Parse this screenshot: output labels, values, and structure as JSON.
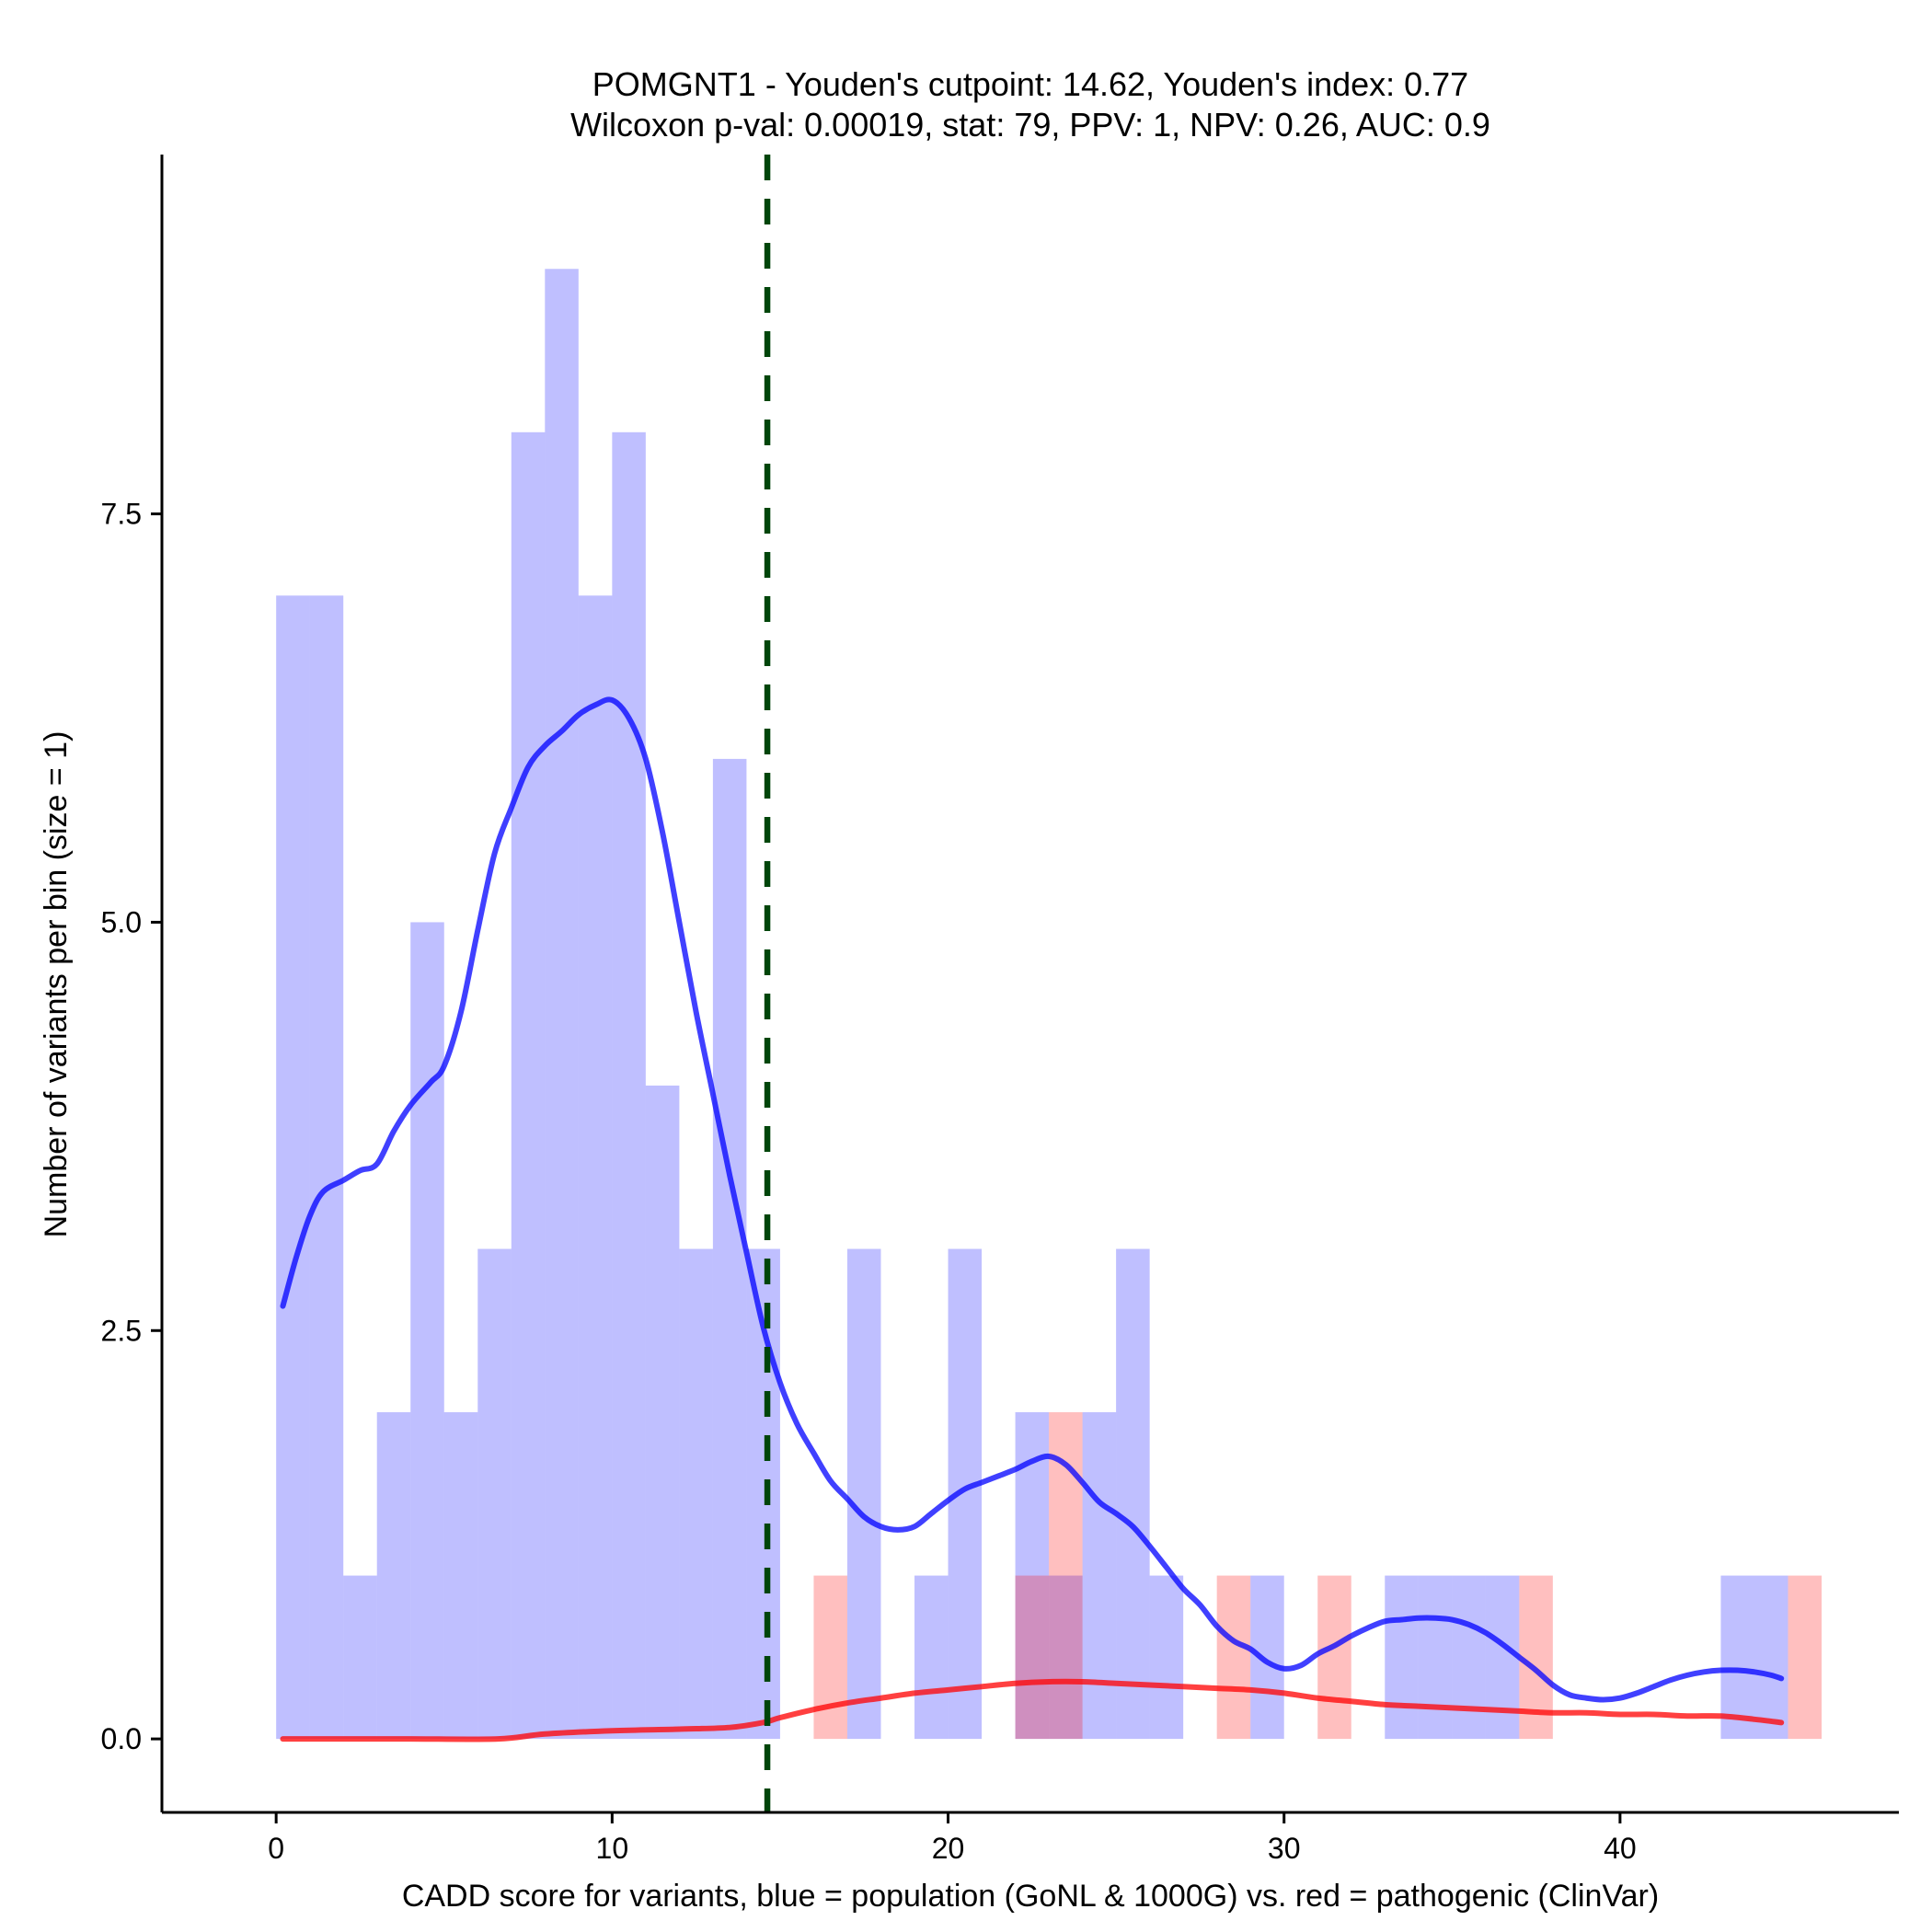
{
  "chart_data": {
    "type": "histogram",
    "title": "POMGNT1 - Youden's cutpoint: 14.62, Youden's index: 0.77",
    "subtitle": "Wilcoxon p-val: 0.00019, stat: 79, PPV: 1, NPV: 0.26, AUC: 0.9",
    "xlabel": "CADD score for variants, blue = population (GoNL & 1000G) vs. red = pathogenic (ClinVar)",
    "ylabel": "Number of variants per bin (size = 1)",
    "xlim": [
      -3.4,
      48.3
    ],
    "ylim": [
      -0.45,
      9.7
    ],
    "x_ticks": [
      0,
      10,
      20,
      30,
      40
    ],
    "x_tick_labels": [
      "0",
      "10",
      "20",
      "30",
      "40"
    ],
    "y_ticks": [
      0,
      2.5,
      5,
      7.5
    ],
    "y_tick_labels": [
      "0.0",
      "2.5",
      "5.0",
      "7.5"
    ],
    "bin_size": 1,
    "cutpoint": 14.62,
    "series": [
      {
        "name": "population (GoNL & 1000G)",
        "color": "#0000ff",
        "fill_opacity": 0.25,
        "bins": [
          {
            "x0": 0,
            "x1": 1,
            "count": 7
          },
          {
            "x0": 1,
            "x1": 2,
            "count": 7
          },
          {
            "x0": 2,
            "x1": 3,
            "count": 1
          },
          {
            "x0": 3,
            "x1": 4,
            "count": 2
          },
          {
            "x0": 4,
            "x1": 5,
            "count": 5
          },
          {
            "x0": 5,
            "x1": 6,
            "count": 2
          },
          {
            "x0": 6,
            "x1": 7,
            "count": 3
          },
          {
            "x0": 7,
            "x1": 8,
            "count": 8
          },
          {
            "x0": 8,
            "x1": 9,
            "count": 9
          },
          {
            "x0": 9,
            "x1": 10,
            "count": 7
          },
          {
            "x0": 10,
            "x1": 11,
            "count": 8
          },
          {
            "x0": 11,
            "x1": 12,
            "count": 4
          },
          {
            "x0": 12,
            "x1": 13,
            "count": 3
          },
          {
            "x0": 13,
            "x1": 14,
            "count": 6
          },
          {
            "x0": 14,
            "x1": 15,
            "count": 3
          },
          {
            "x0": 17,
            "x1": 18,
            "count": 3
          },
          {
            "x0": 19,
            "x1": 20,
            "count": 1
          },
          {
            "x0": 20,
            "x1": 21,
            "count": 3
          },
          {
            "x0": 22,
            "x1": 23,
            "count": 2
          },
          {
            "x0": 23,
            "x1": 24,
            "count": 1
          },
          {
            "x0": 24,
            "x1": 25,
            "count": 2
          },
          {
            "x0": 25,
            "x1": 26,
            "count": 3
          },
          {
            "x0": 26,
            "x1": 27,
            "count": 1
          },
          {
            "x0": 29,
            "x1": 30,
            "count": 1
          },
          {
            "x0": 33,
            "x1": 34,
            "count": 1
          },
          {
            "x0": 34,
            "x1": 35,
            "count": 1
          },
          {
            "x0": 35,
            "x1": 36,
            "count": 1
          },
          {
            "x0": 36,
            "x1": 37,
            "count": 1
          },
          {
            "x0": 43,
            "x1": 44,
            "count": 1
          },
          {
            "x0": 44,
            "x1": 45,
            "count": 1
          }
        ],
        "density_curve": [
          [
            0.2,
            2.65
          ],
          [
            0.6,
            2.95
          ],
          [
            1.0,
            3.2
          ],
          [
            1.4,
            3.35
          ],
          [
            2.0,
            3.42
          ],
          [
            2.5,
            3.48
          ],
          [
            3.0,
            3.52
          ],
          [
            3.5,
            3.72
          ],
          [
            4.0,
            3.88
          ],
          [
            4.6,
            4.02
          ],
          [
            5.0,
            4.12
          ],
          [
            5.5,
            4.45
          ],
          [
            6.0,
            4.95
          ],
          [
            6.5,
            5.42
          ],
          [
            7.0,
            5.7
          ],
          [
            7.5,
            5.95
          ],
          [
            8.0,
            6.08
          ],
          [
            8.5,
            6.17
          ],
          [
            9.0,
            6.27
          ],
          [
            9.5,
            6.33
          ],
          [
            10.0,
            6.36
          ],
          [
            10.5,
            6.25
          ],
          [
            11.0,
            6.0
          ],
          [
            11.5,
            5.55
          ],
          [
            12.0,
            5.0
          ],
          [
            12.5,
            4.45
          ],
          [
            13.0,
            3.95
          ],
          [
            13.5,
            3.45
          ],
          [
            14.0,
            2.98
          ],
          [
            14.5,
            2.52
          ],
          [
            15.0,
            2.18
          ],
          [
            15.5,
            1.93
          ],
          [
            16.0,
            1.75
          ],
          [
            16.5,
            1.58
          ],
          [
            17.0,
            1.47
          ],
          [
            17.5,
            1.36
          ],
          [
            18.0,
            1.3
          ],
          [
            18.5,
            1.28
          ],
          [
            19.0,
            1.3
          ],
          [
            19.5,
            1.38
          ],
          [
            20.0,
            1.46
          ],
          [
            20.5,
            1.53
          ],
          [
            21.0,
            1.57
          ],
          [
            21.5,
            1.61
          ],
          [
            22.0,
            1.65
          ],
          [
            22.5,
            1.7
          ],
          [
            23.0,
            1.73
          ],
          [
            23.5,
            1.68
          ],
          [
            24.0,
            1.57
          ],
          [
            24.5,
            1.45
          ],
          [
            25.0,
            1.38
          ],
          [
            25.5,
            1.3
          ],
          [
            26.0,
            1.18
          ],
          [
            26.5,
            1.05
          ],
          [
            27.0,
            0.92
          ],
          [
            27.5,
            0.82
          ],
          [
            28.0,
            0.69
          ],
          [
            28.5,
            0.6
          ],
          [
            29.0,
            0.55
          ],
          [
            29.5,
            0.47
          ],
          [
            30.0,
            0.43
          ],
          [
            30.5,
            0.45
          ],
          [
            31.0,
            0.52
          ],
          [
            31.5,
            0.57
          ],
          [
            32.0,
            0.63
          ],
          [
            32.5,
            0.68
          ],
          [
            33.0,
            0.72
          ],
          [
            33.5,
            0.73
          ],
          [
            34.0,
            0.74
          ],
          [
            34.5,
            0.74
          ],
          [
            35.0,
            0.73
          ],
          [
            35.5,
            0.7
          ],
          [
            36.0,
            0.65
          ],
          [
            36.5,
            0.58
          ],
          [
            37.0,
            0.5
          ],
          [
            37.5,
            0.42
          ],
          [
            38.0,
            0.33
          ],
          [
            38.5,
            0.27
          ],
          [
            39.0,
            0.25
          ],
          [
            39.5,
            0.24
          ],
          [
            40.0,
            0.25
          ],
          [
            40.5,
            0.28
          ],
          [
            41.0,
            0.32
          ],
          [
            41.5,
            0.36
          ],
          [
            42.0,
            0.39
          ],
          [
            42.5,
            0.41
          ],
          [
            43.0,
            0.42
          ],
          [
            43.5,
            0.42
          ],
          [
            44.0,
            0.41
          ],
          [
            44.5,
            0.39
          ],
          [
            44.8,
            0.37
          ]
        ]
      },
      {
        "name": "pathogenic (ClinVar)",
        "color": "#ff0000",
        "fill_opacity": 0.25,
        "bins": [
          {
            "x0": 16,
            "x1": 17,
            "count": 1
          },
          {
            "x0": 22,
            "x1": 23,
            "count": 1
          },
          {
            "x0": 23,
            "x1": 24,
            "count": 2
          },
          {
            "x0": 28,
            "x1": 29,
            "count": 1
          },
          {
            "x0": 31,
            "x1": 32,
            "count": 1
          },
          {
            "x0": 37,
            "x1": 38,
            "count": 1
          },
          {
            "x0": 45,
            "x1": 46,
            "count": 1
          }
        ],
        "density_curve": [
          [
            0.2,
            0.0
          ],
          [
            2.0,
            0.0
          ],
          [
            4.0,
            0.0
          ],
          [
            6.6,
            0.0
          ],
          [
            8.0,
            0.03
          ],
          [
            10.0,
            0.05
          ],
          [
            12.0,
            0.06
          ],
          [
            13.5,
            0.07
          ],
          [
            14.5,
            0.1
          ],
          [
            15.0,
            0.13
          ],
          [
            16.0,
            0.18
          ],
          [
            17.0,
            0.22
          ],
          [
            18.0,
            0.25
          ],
          [
            19.0,
            0.28
          ],
          [
            20.0,
            0.3
          ],
          [
            21.0,
            0.32
          ],
          [
            22.0,
            0.34
          ],
          [
            23.0,
            0.35
          ],
          [
            24.0,
            0.35
          ],
          [
            25.0,
            0.34
          ],
          [
            26.0,
            0.33
          ],
          [
            27.0,
            0.32
          ],
          [
            28.0,
            0.31
          ],
          [
            29.0,
            0.3
          ],
          [
            30.0,
            0.28
          ],
          [
            31.0,
            0.25
          ],
          [
            32.0,
            0.23
          ],
          [
            33.0,
            0.21
          ],
          [
            34.0,
            0.2
          ],
          [
            35.0,
            0.19
          ],
          [
            36.0,
            0.18
          ],
          [
            37.0,
            0.17
          ],
          [
            38.0,
            0.16
          ],
          [
            39.0,
            0.16
          ],
          [
            40.0,
            0.15
          ],
          [
            41.0,
            0.15
          ],
          [
            42.0,
            0.14
          ],
          [
            43.0,
            0.14
          ],
          [
            44.0,
            0.12
          ],
          [
            44.8,
            0.1
          ]
        ]
      }
    ]
  }
}
